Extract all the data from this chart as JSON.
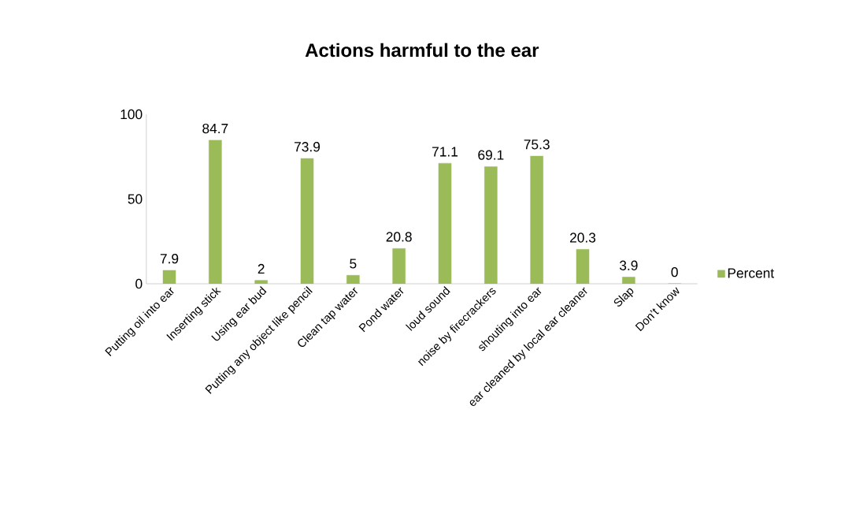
{
  "chart_data": {
    "type": "bar",
    "title": "Actions harmful to the ear",
    "categories": [
      "Putting oil into ear",
      "Inserting stick",
      "Using ear bud",
      "Putting any object like pencil",
      "Clean tap water",
      "Pond water",
      "loud sound",
      "noise by firecrackers",
      "shouting into ear",
      "ear cleaned by local ear cleaner",
      "Slap",
      "Don’t know"
    ],
    "series": [
      {
        "name": "Percent",
        "color": "#9bbb59",
        "values": [
          7.9,
          84.7,
          2,
          73.9,
          5,
          20.8,
          71.1,
          69.1,
          75.3,
          20.3,
          3.9,
          0
        ]
      }
    ],
    "ylim": [
      0,
      100
    ],
    "yticks": [
      0,
      50,
      100
    ],
    "data_labels": true,
    "legend": "right",
    "grid": false
  }
}
